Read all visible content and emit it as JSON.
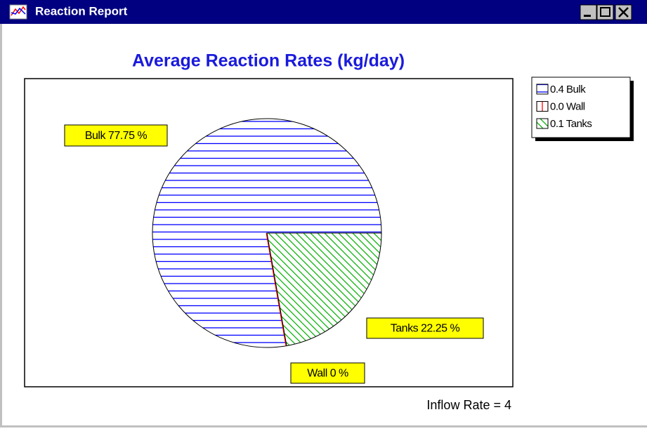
{
  "window": {
    "title": "Reaction Report"
  },
  "chart_data": {
    "type": "pie",
    "title": "Average Reaction Rates (kg/day)",
    "categories": [
      "Bulk",
      "Wall",
      "Tanks"
    ],
    "values": [
      77.75,
      0,
      22.25
    ],
    "value_labels": [
      "Bulk 77.75 %",
      "Wall 0 %",
      "Tanks 22.25 %"
    ],
    "legend_labels": [
      "0.4 Bulk",
      "0.0 Wall",
      "0.1 Tanks"
    ],
    "colors": [
      "#0000ff",
      "#ff0000",
      "#00b000"
    ],
    "annotation": "Inflow Rate = 4"
  }
}
